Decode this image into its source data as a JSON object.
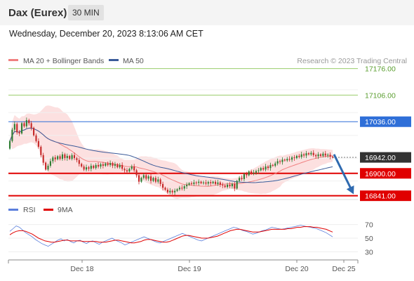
{
  "header": {
    "title": "Dax (Eurex)",
    "interval": "30 MIN",
    "datetime": "Wednesday, December 20, 2023 8:13:06 AM CET",
    "credit": "Research © 2023 Trading Central"
  },
  "colors": {
    "resistance": "#9acd6b",
    "pivot": "#2f6fd8",
    "support": "#e00000",
    "last": "#333333",
    "up_candle": "#2e7d32",
    "down_candle": "#c62828",
    "ma20": "#f08080",
    "ma50": "#3a5a99",
    "rsi": "#5b7fdc",
    "rsi_ma": "#e00000",
    "arrow": "#2f6ab0"
  },
  "chart_data": [
    {
      "type": "candlestick",
      "legend": [
        {
          "name": "MA 20 + Bollinger Bands",
          "color": "#f08080"
        },
        {
          "name": "MA 50",
          "color": "#3a5a99"
        }
      ],
      "ylim": [
        16820,
        17190
      ],
      "x_ticks": [
        "Dec 18",
        "Dec 19",
        "Dec 20",
        "Dec 25"
      ],
      "levels": [
        {
          "value": 17176.0,
          "label": "17176.00",
          "kind": "resistance"
        },
        {
          "value": 17106.0,
          "label": "17106.00",
          "kind": "resistance"
        },
        {
          "value": 17036.0,
          "label": "17036.00",
          "kind": "pivot"
        },
        {
          "value": 16900.0,
          "label": "16900.00",
          "kind": "support"
        },
        {
          "value": 16841.0,
          "label": "16841.00",
          "kind": "support"
        }
      ],
      "last_price": {
        "value": 16942.0,
        "label": "16942.00"
      },
      "forecast_arrow": {
        "from": 16950,
        "to": 16845
      },
      "closes": [
        16985,
        17015,
        17030,
        17008,
        17005,
        17032,
        17024,
        17040,
        17032,
        17020,
        17000,
        16985,
        16970,
        16948,
        16928,
        16910,
        16920,
        16932,
        16942,
        16937,
        16945,
        16938,
        16950,
        16940,
        16946,
        16938,
        16948,
        16940,
        16935,
        16925,
        16918,
        16910,
        16916,
        16912,
        16920,
        16914,
        16922,
        16918,
        16924,
        16920,
        16926,
        16922,
        16927,
        16920,
        16924,
        16916,
        16922,
        16912,
        16908,
        16905,
        16912,
        16918,
        16908,
        16895,
        16878,
        16888,
        16895,
        16886,
        16892,
        16880,
        16888,
        16878,
        16884,
        16872,
        16862,
        16857,
        16850,
        16854,
        16850,
        16854,
        16858,
        16862,
        16860,
        16866,
        16870,
        16874,
        16872,
        16876,
        16875,
        16878,
        16874,
        16876,
        16873,
        16877,
        16874,
        16878,
        16872,
        16876,
        16870,
        16868,
        16864,
        16870,
        16866,
        16872,
        16860,
        16880,
        16888,
        16885,
        16898,
        16895,
        16905,
        16900,
        16902,
        16906,
        16908,
        16914,
        16910,
        16918,
        16914,
        16922,
        16920,
        16926,
        16932,
        16930,
        16936,
        16934,
        16938,
        16936,
        16942,
        16940,
        16946,
        16943,
        16950,
        16947,
        16953,
        16950,
        16954,
        16948,
        16945,
        16950,
        16946,
        16952,
        16947,
        16949,
        16944,
        16942
      ]
    },
    {
      "type": "line",
      "legend": [
        {
          "name": "RSI",
          "color": "#5b7fdc"
        },
        {
          "name": "9MA",
          "color": "#e00000"
        }
      ],
      "ylim": [
        20,
        80
      ],
      "y_ticks": [
        30,
        50,
        70
      ],
      "series": [
        {
          "name": "RSI",
          "values": [
            60,
            64,
            68,
            66,
            62,
            58,
            55,
            52,
            48,
            45,
            42,
            40,
            38,
            41,
            44,
            47,
            49,
            46,
            48,
            45,
            43,
            46,
            47,
            44,
            42,
            45,
            46,
            43,
            41,
            44,
            46,
            48,
            50,
            47,
            45,
            43,
            40,
            42,
            44,
            46,
            48,
            50,
            52,
            50,
            48,
            46,
            44,
            43,
            45,
            47,
            49,
            51,
            53,
            55,
            57,
            55,
            53,
            51,
            49,
            47,
            46,
            48,
            50,
            52,
            54,
            56,
            58,
            60,
            62,
            64,
            66,
            65,
            63,
            61,
            60,
            58,
            56,
            57,
            59,
            61,
            62,
            64,
            66,
            65,
            64,
            63,
            64,
            65,
            66,
            67,
            68,
            69,
            68,
            67,
            66,
            65,
            64,
            62,
            60,
            58,
            55,
            52
          ]
        },
        {
          "name": "9MA",
          "values": [
            55,
            58,
            60,
            61,
            61,
            60,
            58,
            56,
            53,
            50,
            48,
            46,
            45,
            44,
            44,
            45,
            46,
            47,
            47,
            46,
            46,
            46,
            46,
            45,
            45,
            45,
            45,
            45,
            44,
            44,
            44,
            45,
            46,
            47,
            47,
            46,
            45,
            44,
            43,
            43,
            44,
            45,
            47,
            48,
            48,
            47,
            46,
            45,
            44,
            44,
            45,
            47,
            49,
            51,
            53,
            54,
            54,
            53,
            52,
            51,
            50,
            50,
            50,
            51,
            52,
            53,
            55,
            57,
            59,
            61,
            62,
            63,
            63,
            62,
            61,
            60,
            59,
            59,
            59,
            60,
            61,
            62,
            63,
            63,
            63,
            63,
            63,
            64,
            64,
            65,
            66,
            66,
            67,
            67,
            67,
            66,
            66,
            65,
            64,
            63,
            61,
            59
          ]
        }
      ]
    }
  ]
}
